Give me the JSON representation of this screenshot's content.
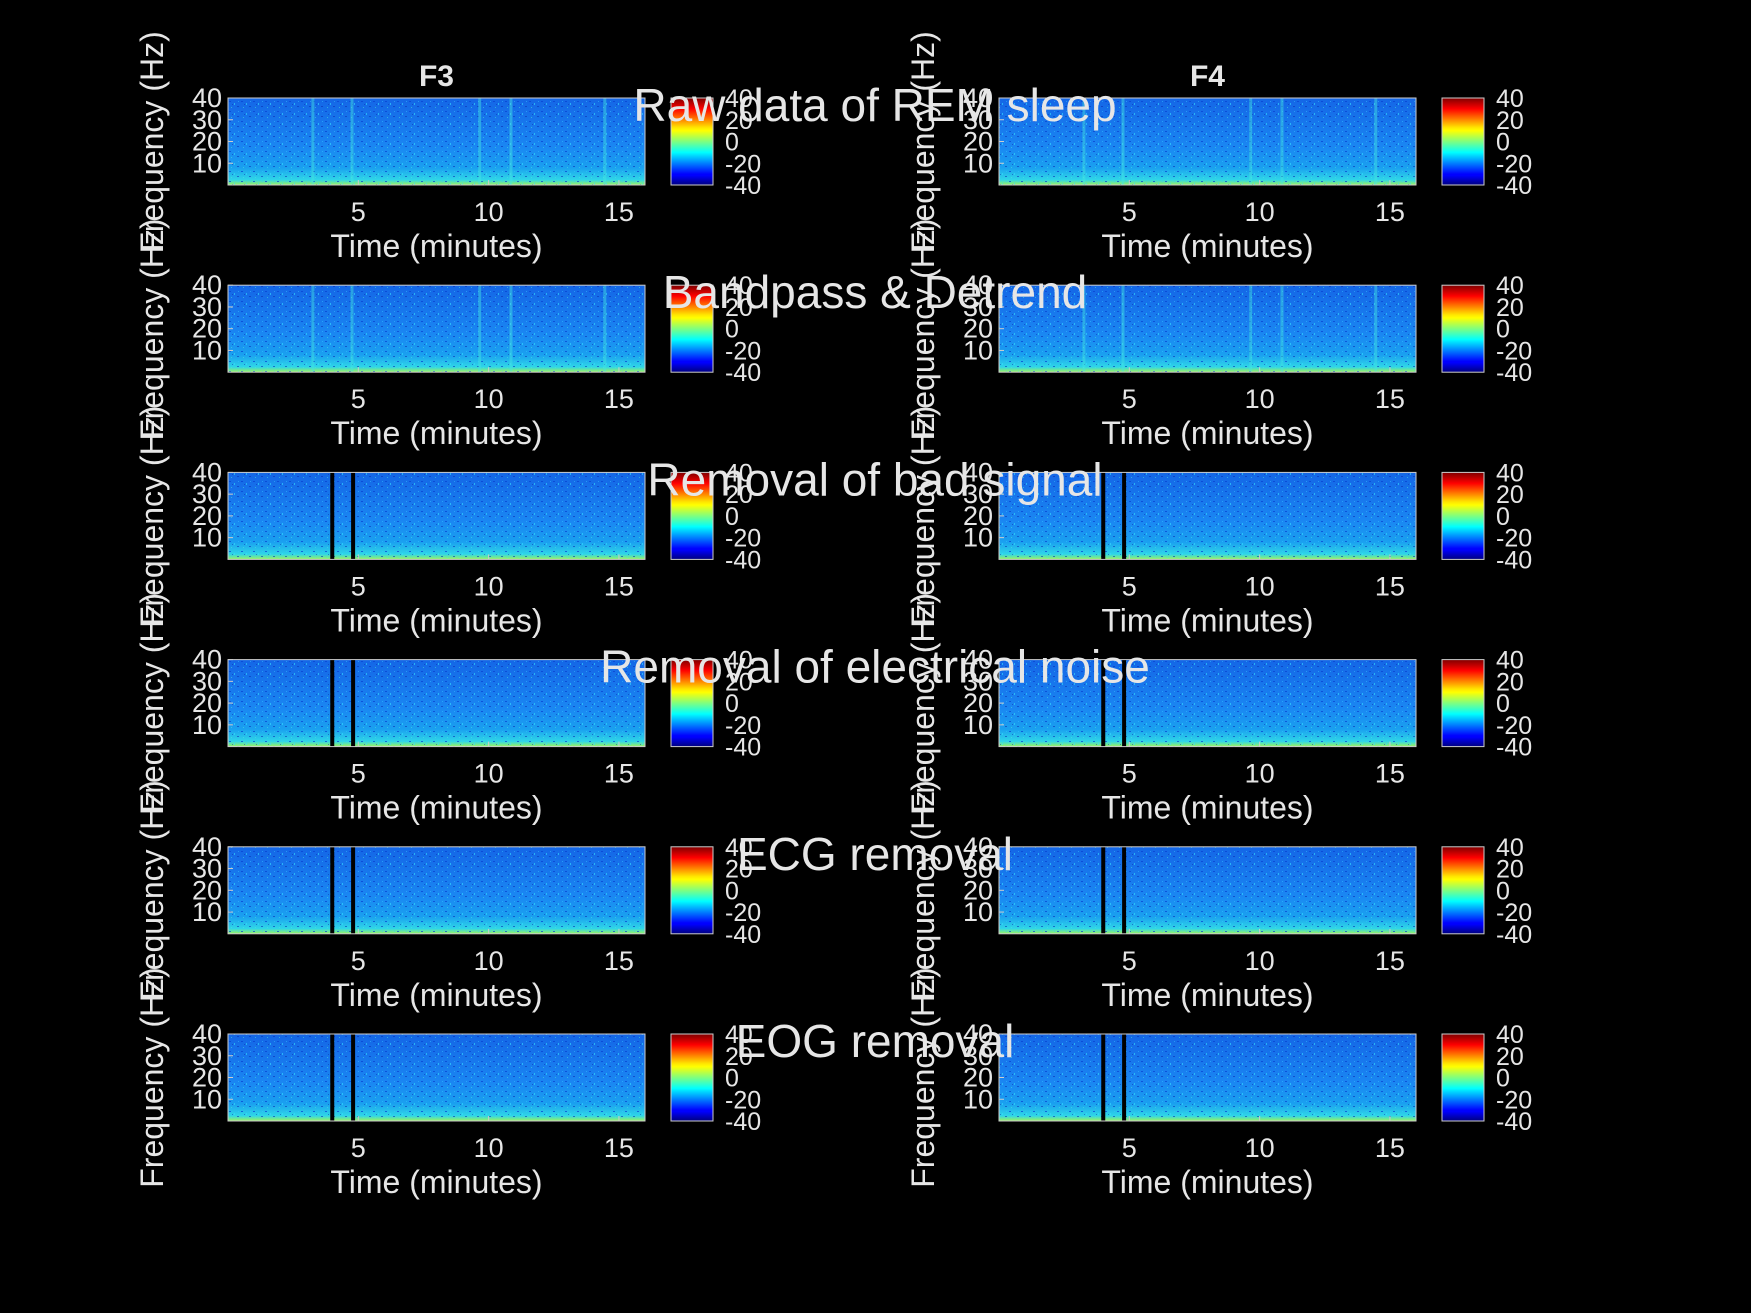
{
  "chart_data": {
    "type": "heatmap",
    "description_columns": [
      "F3",
      "F4"
    ],
    "columns": [
      "F3",
      "F4"
    ],
    "rows": [
      {
        "title": "Raw data of REM sleep",
        "removed_segments_minutes": []
      },
      {
        "title": "Bandpass & Detrend",
        "removed_segments_minutes": []
      },
      {
        "title": "Removal of bad signal",
        "removed_segments_minutes": [
          4.0,
          4.8
        ]
      },
      {
        "title": "Removal of electrical noise",
        "removed_segments_minutes": [
          4.0,
          4.8
        ]
      },
      {
        "title": "ECG removal",
        "removed_segments_minutes": [
          4.0,
          4.8
        ]
      },
      {
        "title": "EOG removal",
        "removed_segments_minutes": [
          4.0,
          4.8
        ]
      }
    ],
    "xlabel": "Time (minutes)",
    "ylabel": "Frequency (Hz)",
    "xlim": [
      0,
      16
    ],
    "ylim": [
      0,
      40
    ],
    "xticks": [
      "5",
      "10",
      "15"
    ],
    "yticks": [
      "10",
      "20",
      "30",
      "40"
    ],
    "colorbar": {
      "range": [
        -40,
        40
      ],
      "ticks": [
        "40",
        "20",
        "0",
        "-20",
        "-40"
      ],
      "colormap": "jet"
    }
  },
  "colors": {
    "background": "#000000",
    "text": "#e6e6e6",
    "axis_frame": "#cccccc"
  }
}
